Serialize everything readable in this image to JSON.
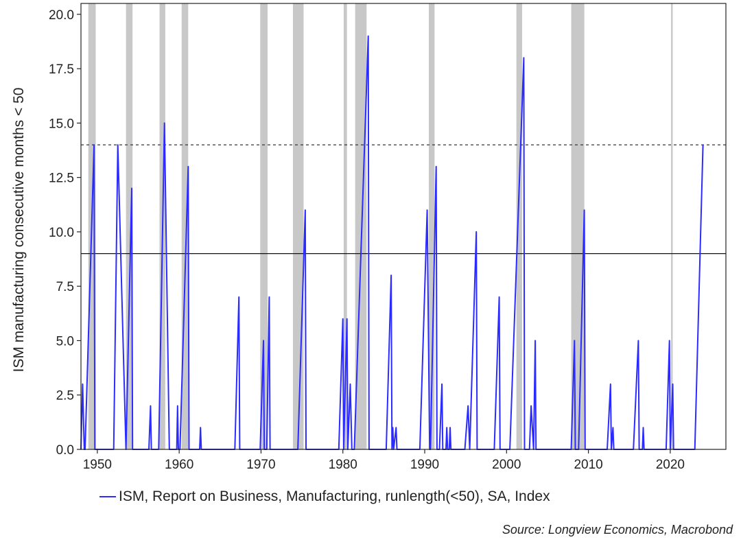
{
  "chart_data": {
    "type": "line",
    "title": "",
    "xlabel": "",
    "ylabel": "ISM manufacturing consecutive months < 50",
    "xlim": [
      1948.0,
      2026.8
    ],
    "ylim": [
      0,
      20.5
    ],
    "xticks": [
      1950,
      1960,
      1970,
      1980,
      1990,
      2000,
      2010,
      2020
    ],
    "yticks": [
      0,
      2.5,
      5,
      7.5,
      10,
      12.5,
      15,
      17.5,
      20
    ],
    "ytick_labels": [
      "0.0",
      "2.5",
      "5.0",
      "7.5",
      "10.0",
      "12.5",
      "15.0",
      "17.5",
      "20.0"
    ],
    "reference_lines": [
      {
        "y": 14,
        "style": "dashed",
        "color": "#333333"
      },
      {
        "y": 9,
        "style": "solid",
        "color": "#111111"
      }
    ],
    "recession_bands": [
      [
        1948.9,
        1949.8
      ],
      [
        1953.5,
        1954.3
      ],
      [
        1957.6,
        1958.3
      ],
      [
        1960.3,
        1961.1
      ],
      [
        1969.9,
        1970.8
      ],
      [
        1973.9,
        1975.2
      ],
      [
        1980.1,
        1980.5
      ],
      [
        1981.5,
        1982.9
      ],
      [
        1990.5,
        1991.2
      ],
      [
        2001.2,
        2001.9
      ],
      [
        2007.9,
        2009.5
      ],
      [
        2020.1,
        2020.3
      ]
    ],
    "grid": false,
    "legend_position": "bottom",
    "series": [
      {
        "name": "ISM, Report on Business, Manufacturing, runlength(<50), SA, Index",
        "color": "#2b2bff",
        "x": [
          1948.0,
          1948.2,
          1948.4,
          1948.5,
          1949.6,
          1949.7,
          1952.0,
          1952.5,
          1953.5,
          1954.2,
          1954.3,
          1956.3,
          1956.5,
          1956.6,
          1957.5,
          1958.2,
          1958.8,
          1959.7,
          1959.8,
          1959.9,
          1960.1,
          1961.1,
          1961.2,
          1962.5,
          1962.6,
          1962.7,
          1966.8,
          1967.3,
          1967.4,
          1969.9,
          1970.3,
          1970.4,
          1970.7,
          1971.0,
          1971.1,
          1974.5,
          1975.4,
          1975.5,
          1979.5,
          1980.0,
          1980.1,
          1980.5,
          1980.6,
          1980.9,
          1981.1,
          1981.2,
          1981.4,
          1983.1,
          1983.2,
          1985.3,
          1985.9,
          1986.0,
          1986.1,
          1986.2,
          1986.5,
          1986.6,
          1989.4,
          1990.3,
          1990.6,
          1990.7,
          1991.4,
          1991.5,
          1991.8,
          1992.1,
          1992.2,
          1992.6,
          1992.7,
          1992.8,
          1993.0,
          1993.1,
          1993.2,
          1994.9,
          1995.3,
          1995.5,
          1996.3,
          1996.4,
          1998.5,
          1999.1,
          1999.2,
          2000.4,
          2002.1,
          2002.2,
          2002.8,
          2003.0,
          2003.3,
          2003.5,
          2003.6,
          2007.9,
          2008.3,
          2008.4,
          2008.8,
          2009.5,
          2009.6,
          2012.3,
          2012.7,
          2012.8,
          2013.0,
          2013.1,
          2015.5,
          2016.1,
          2016.2,
          2016.6,
          2016.7,
          2016.8,
          2019.5,
          2019.9,
          2020.0,
          2020.3,
          2020.4,
          2023.0,
          2024.0
        ],
        "values": [
          0,
          3,
          0,
          0,
          14,
          0,
          0,
          14,
          0,
          12,
          0,
          0,
          2,
          0,
          0,
          15,
          0,
          0,
          2,
          0,
          0,
          13,
          0,
          0,
          1,
          0,
          0,
          7,
          0,
          0,
          5,
          0,
          0,
          7,
          0,
          0,
          11,
          0,
          0,
          6,
          0,
          6,
          0,
          3,
          0,
          0,
          0,
          19,
          0,
          0,
          8,
          0,
          1,
          0,
          1,
          0,
          0,
          11,
          0,
          0,
          13,
          0,
          0,
          3,
          0,
          0,
          1,
          0,
          0,
          1,
          0,
          0,
          2,
          0,
          10,
          0,
          0,
          7,
          0,
          0,
          18,
          0,
          0,
          2,
          0,
          5,
          0,
          0,
          5,
          0,
          0,
          11,
          0,
          0,
          3,
          0,
          1,
          0,
          0,
          5,
          0,
          0,
          1,
          0,
          0,
          5,
          0,
          3,
          0,
          0,
          14
        ]
      }
    ]
  },
  "legend": {
    "label": "ISM, Report on Business, Manufacturing, runlength(<50), SA, Index",
    "color": "#2b2bff"
  },
  "source": "Source: Longview Economics, Macrobond"
}
